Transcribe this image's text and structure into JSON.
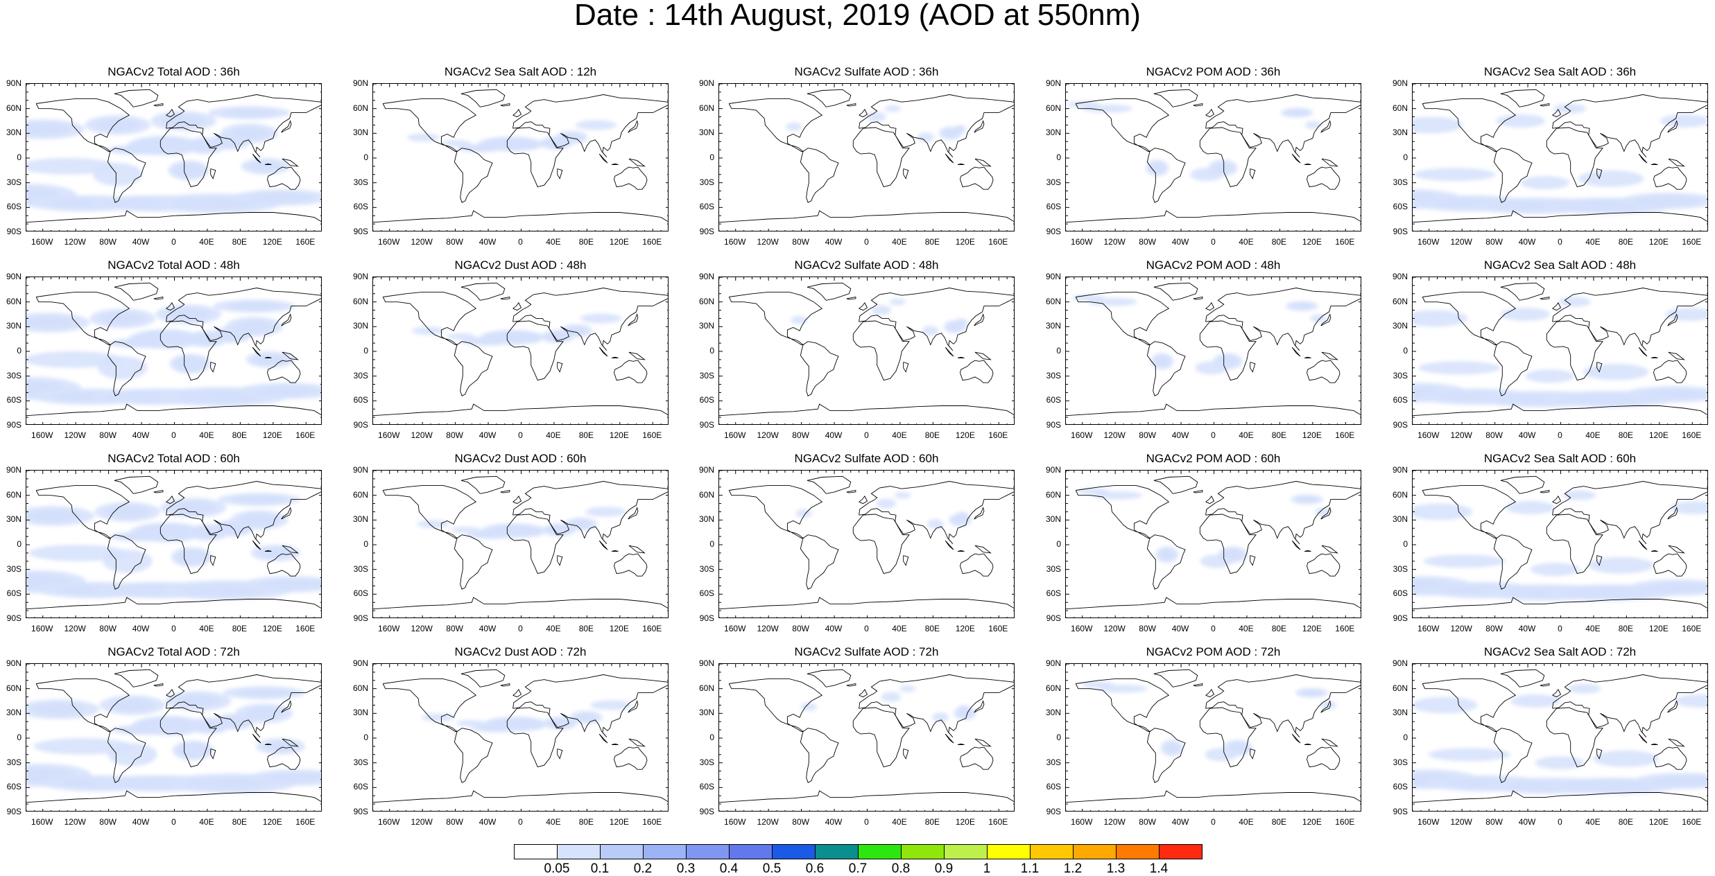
{
  "title": "Date : 14th August, 2019 (AOD at 550nm)",
  "panels": [
    [
      "NGACv2 Total AOD : 36h",
      "NGACv2 Sea Salt  AOD : 12h",
      "NGACv2 Sulfate AOD : 36h",
      "NGACv2 POM AOD : 36h",
      "NGACv2 Sea Salt  AOD : 36h"
    ],
    [
      "NGACv2 Total AOD : 48h",
      "NGACv2 Dust AOD : 48h",
      "NGACv2 Sulfate AOD : 48h",
      "NGACv2 POM AOD : 48h",
      "NGACv2 Sea Salt  AOD : 48h"
    ],
    [
      "NGACv2 Total AOD : 60h",
      "NGACv2 Dust AOD : 60h",
      "NGACv2 Sulfate AOD : 60h",
      "NGACv2 POM AOD : 60h",
      "NGACv2 Sea Salt  AOD : 60h"
    ],
    [
      "NGACv2 Total AOD : 72h",
      "NGACv2 Dust AOD : 72h",
      "NGACv2 Sulfate AOD : 72h",
      "NGACv2 POM AOD : 72h",
      "NGACv2 Sea Salt  AOD : 72h"
    ]
  ],
  "lat_ticks": [
    "90N",
    "60N",
    "30N",
    "0",
    "30S",
    "60S",
    "90S"
  ],
  "lon_ticks": [
    "160W",
    "120W",
    "80W",
    "40W",
    "0",
    "40E",
    "80E",
    "120E",
    "160E"
  ],
  "colorbar": {
    "colors": [
      "#ffffff",
      "#d7e2fc",
      "#b9cbf9",
      "#9cb3f6",
      "#7f97f1",
      "#6278ec",
      "#1a5ae6",
      "#0b8e8e",
      "#2ee60f",
      "#8fe60a",
      "#bdf04b",
      "#ffff00",
      "#ffc800",
      "#ffa800",
      "#ff7a00",
      "#ff2a10"
    ],
    "labels": [
      "0.05",
      "0.1",
      "0.2",
      "0.3",
      "0.4",
      "0.5",
      "0.6",
      "0.7",
      "0.8",
      "0.9",
      "1",
      "1.1",
      "1.2",
      "1.3",
      "1.4"
    ]
  },
  "icons": {
    "coastline": "coastline-outline-icon"
  }
}
